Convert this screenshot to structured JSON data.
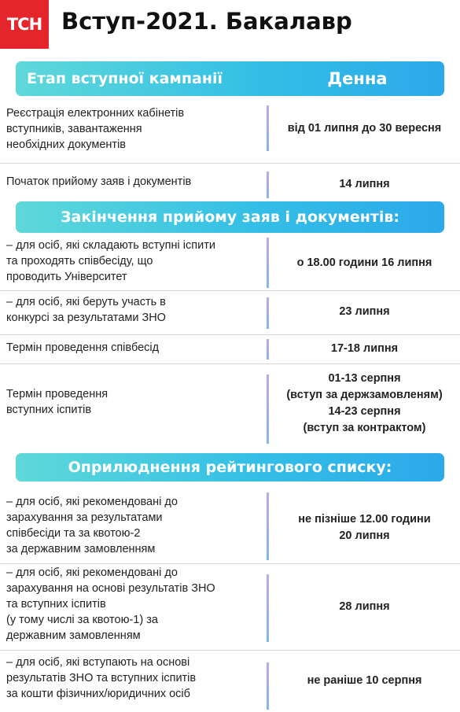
{
  "header": {
    "logo": "ТСН",
    "title": "Вступ-2021. Бакалавр"
  },
  "table_header": {
    "stage": "Етап вступної кампанії",
    "mode": "Денна"
  },
  "rows1": [
    {
      "label": [
        "Реєстрація електронних кабінетів",
        "вступників, завантаження",
        "необхідних документів"
      ],
      "value": [
        "від 01 липня до 30 вересня"
      ]
    },
    {
      "label": [
        "Початок прийому заяв і документів"
      ],
      "value": [
        "14 липня"
      ]
    }
  ],
  "section2": "Закінчення прийому заяв і документів:",
  "rows2": [
    {
      "label": [
        "– для осіб, які складають вступні іспити",
        "та проходять співбесіду, що",
        "проводить Університет"
      ],
      "value": [
        "о 18.00 години 16 липня"
      ]
    },
    {
      "label": [
        "– для осіб, які беруть участь в",
        "конкурсі за результатами ЗНО"
      ],
      "value": [
        "23 липня"
      ]
    },
    {
      "label": [
        "Термін проведення співбесід"
      ],
      "value": [
        "17-18 липня"
      ]
    },
    {
      "label": [
        "Термін проведення",
        "вступних іспитів"
      ],
      "value": [
        "01-13 серпня",
        "(вступ за держзамовленям)",
        "14-23 серпня",
        "(вступ за контрактом)"
      ]
    }
  ],
  "section3": "Оприлюднення рейтингового списку:",
  "rows3": [
    {
      "label": [
        "– для осіб, які рекомендовані до",
        "зарахування за результатами",
        "співбесіди та за квотою-2",
        "за державним замовленням"
      ],
      "value": [
        "не пізніше 12.00 години",
        "20 липня"
      ]
    },
    {
      "label": [
        "– для осіб, які рекомендовані до",
        "зарахування на основі результатів ЗНО",
        "та вступних іспитів",
        "(у тому числі за квотою-1) за",
        "державним замовленням"
      ],
      "value": [
        "28 липня"
      ]
    },
    {
      "label": [
        "– для осіб, які вступають на основі",
        "результатів ЗНО та вступних іспитів",
        "за кошти фізичних/юридичних осіб"
      ],
      "value": [
        "не раніше 10 серпня"
      ]
    }
  ]
}
